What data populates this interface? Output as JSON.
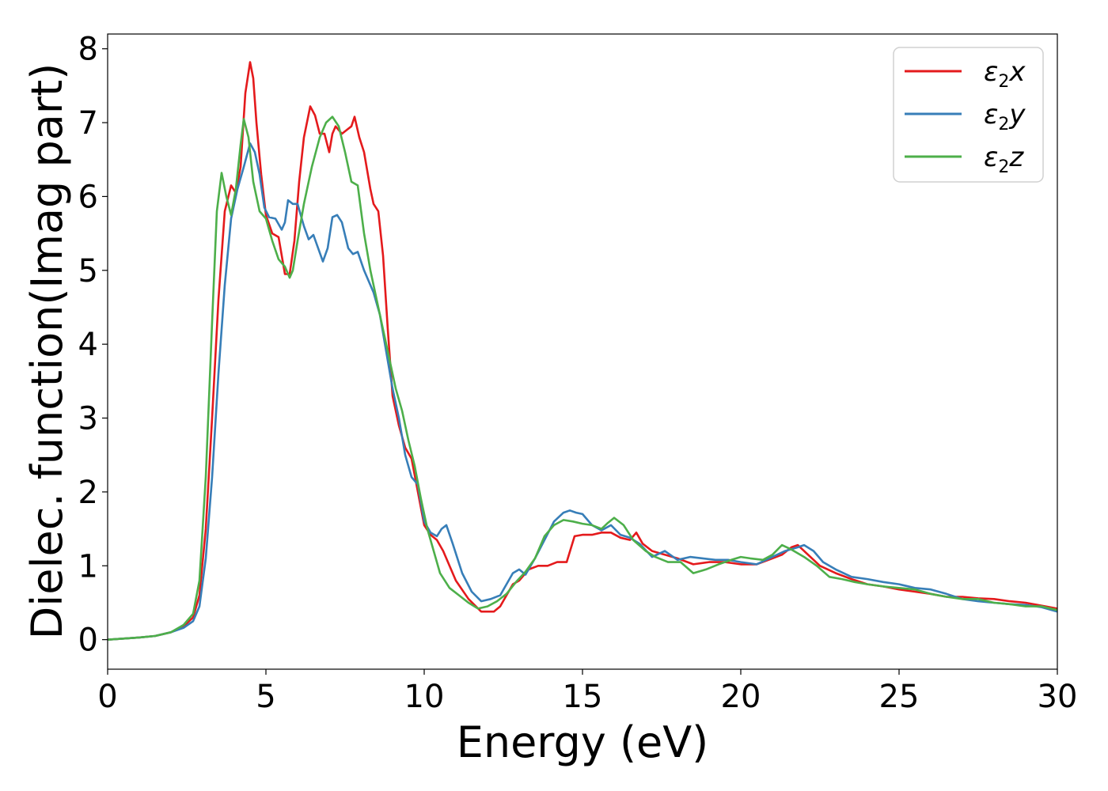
{
  "chart_data": {
    "type": "line",
    "xlabel": "Energy (eV)",
    "ylabel": "Dielec. function(Imag part)",
    "xlim": [
      0,
      30
    ],
    "ylim": [
      -0.4,
      8.2
    ],
    "xticks": [
      "0",
      "5",
      "10",
      "15",
      "20",
      "25",
      "30"
    ],
    "yticks": [
      "0",
      "1",
      "2",
      "3",
      "4",
      "5",
      "6",
      "7",
      "8"
    ],
    "grid": false,
    "legend_position": "top-right",
    "series": [
      {
        "name": "ε2x",
        "legend": {
          "symbol": "ε",
          "sub": "2",
          "axis": "x"
        },
        "color": "#e41a1c",
        "points": [
          [
            0,
            0
          ],
          [
            1,
            0.03
          ],
          [
            1.5,
            0.05
          ],
          [
            2,
            0.1
          ],
          [
            2.4,
            0.18
          ],
          [
            2.7,
            0.3
          ],
          [
            2.9,
            0.6
          ],
          [
            3.1,
            1.5
          ],
          [
            3.3,
            3.0
          ],
          [
            3.5,
            4.6
          ],
          [
            3.7,
            5.8
          ],
          [
            3.9,
            6.15
          ],
          [
            4.05,
            6.05
          ],
          [
            4.2,
            6.4
          ],
          [
            4.35,
            7.4
          ],
          [
            4.5,
            7.82
          ],
          [
            4.6,
            7.6
          ],
          [
            4.7,
            7.0
          ],
          [
            4.85,
            6.3
          ],
          [
            5.0,
            5.75
          ],
          [
            5.2,
            5.5
          ],
          [
            5.4,
            5.45
          ],
          [
            5.6,
            4.95
          ],
          [
            5.75,
            4.95
          ],
          [
            5.9,
            5.4
          ],
          [
            6.05,
            6.2
          ],
          [
            6.2,
            6.8
          ],
          [
            6.4,
            7.22
          ],
          [
            6.55,
            7.1
          ],
          [
            6.7,
            6.85
          ],
          [
            6.85,
            6.85
          ],
          [
            7.0,
            6.6
          ],
          [
            7.1,
            6.85
          ],
          [
            7.2,
            6.95
          ],
          [
            7.4,
            6.85
          ],
          [
            7.55,
            6.9
          ],
          [
            7.7,
            6.95
          ],
          [
            7.8,
            7.08
          ],
          [
            7.95,
            6.8
          ],
          [
            8.1,
            6.6
          ],
          [
            8.3,
            6.1
          ],
          [
            8.4,
            5.9
          ],
          [
            8.55,
            5.8
          ],
          [
            8.7,
            5.2
          ],
          [
            8.85,
            4.2
          ],
          [
            9.0,
            3.3
          ],
          [
            9.2,
            2.9
          ],
          [
            9.4,
            2.6
          ],
          [
            9.6,
            2.45
          ],
          [
            9.8,
            2.0
          ],
          [
            10.0,
            1.55
          ],
          [
            10.2,
            1.42
          ],
          [
            10.4,
            1.35
          ],
          [
            10.6,
            1.2
          ],
          [
            11.0,
            0.8
          ],
          [
            11.4,
            0.55
          ],
          [
            11.8,
            0.38
          ],
          [
            12.2,
            0.38
          ],
          [
            12.4,
            0.45
          ],
          [
            12.8,
            0.75
          ],
          [
            13.0,
            0.8
          ],
          [
            13.3,
            0.95
          ],
          [
            13.6,
            1.0
          ],
          [
            13.9,
            1.0
          ],
          [
            14.2,
            1.05
          ],
          [
            14.5,
            1.05
          ],
          [
            14.75,
            1.4
          ],
          [
            15.0,
            1.42
          ],
          [
            15.3,
            1.42
          ],
          [
            15.6,
            1.45
          ],
          [
            15.9,
            1.45
          ],
          [
            16.2,
            1.38
          ],
          [
            16.5,
            1.35
          ],
          [
            16.7,
            1.45
          ],
          [
            16.9,
            1.3
          ],
          [
            17.2,
            1.2
          ],
          [
            17.6,
            1.15
          ],
          [
            18.0,
            1.1
          ],
          [
            18.5,
            1.02
          ],
          [
            19.0,
            1.05
          ],
          [
            19.5,
            1.05
          ],
          [
            20.0,
            1.02
          ],
          [
            20.5,
            1.02
          ],
          [
            21.0,
            1.1
          ],
          [
            21.3,
            1.15
          ],
          [
            21.6,
            1.25
          ],
          [
            21.8,
            1.28
          ],
          [
            22.0,
            1.2
          ],
          [
            22.5,
            1.0
          ],
          [
            23.0,
            0.9
          ],
          [
            23.5,
            0.82
          ],
          [
            24.0,
            0.75
          ],
          [
            24.5,
            0.72
          ],
          [
            25.0,
            0.68
          ],
          [
            25.5,
            0.65
          ],
          [
            26.0,
            0.62
          ],
          [
            26.5,
            0.58
          ],
          [
            27.0,
            0.58
          ],
          [
            27.5,
            0.56
          ],
          [
            28.0,
            0.55
          ],
          [
            28.5,
            0.52
          ],
          [
            29.0,
            0.5
          ],
          [
            29.5,
            0.46
          ],
          [
            30.0,
            0.42
          ]
        ]
      },
      {
        "name": "ε2y",
        "legend": {
          "symbol": "ε",
          "sub": "2",
          "axis": "y"
        },
        "color": "#377eb8",
        "points": [
          [
            0,
            0
          ],
          [
            1,
            0.03
          ],
          [
            1.5,
            0.05
          ],
          [
            2,
            0.1
          ],
          [
            2.4,
            0.16
          ],
          [
            2.7,
            0.25
          ],
          [
            2.9,
            0.45
          ],
          [
            3.1,
            1.1
          ],
          [
            3.3,
            2.2
          ],
          [
            3.5,
            3.6
          ],
          [
            3.7,
            4.8
          ],
          [
            3.9,
            5.7
          ],
          [
            4.1,
            6.1
          ],
          [
            4.3,
            6.4
          ],
          [
            4.5,
            6.72
          ],
          [
            4.65,
            6.6
          ],
          [
            4.8,
            6.3
          ],
          [
            4.95,
            5.85
          ],
          [
            5.1,
            5.72
          ],
          [
            5.3,
            5.7
          ],
          [
            5.5,
            5.55
          ],
          [
            5.6,
            5.65
          ],
          [
            5.7,
            5.95
          ],
          [
            5.85,
            5.9
          ],
          [
            6.0,
            5.9
          ],
          [
            6.2,
            5.6
          ],
          [
            6.35,
            5.42
          ],
          [
            6.5,
            5.48
          ],
          [
            6.65,
            5.3
          ],
          [
            6.8,
            5.12
          ],
          [
            6.95,
            5.3
          ],
          [
            7.1,
            5.72
          ],
          [
            7.25,
            5.75
          ],
          [
            7.4,
            5.65
          ],
          [
            7.6,
            5.3
          ],
          [
            7.75,
            5.22
          ],
          [
            7.9,
            5.25
          ],
          [
            8.1,
            5.0
          ],
          [
            8.25,
            4.85
          ],
          [
            8.4,
            4.7
          ],
          [
            8.6,
            4.4
          ],
          [
            8.8,
            3.9
          ],
          [
            9.0,
            3.4
          ],
          [
            9.2,
            3.0
          ],
          [
            9.4,
            2.5
          ],
          [
            9.6,
            2.2
          ],
          [
            9.8,
            2.1
          ],
          [
            10.0,
            1.6
          ],
          [
            10.2,
            1.45
          ],
          [
            10.4,
            1.4
          ],
          [
            10.55,
            1.5
          ],
          [
            10.7,
            1.55
          ],
          [
            10.9,
            1.3
          ],
          [
            11.2,
            0.9
          ],
          [
            11.5,
            0.65
          ],
          [
            11.8,
            0.52
          ],
          [
            12.1,
            0.55
          ],
          [
            12.4,
            0.6
          ],
          [
            12.6,
            0.75
          ],
          [
            12.8,
            0.9
          ],
          [
            13.0,
            0.95
          ],
          [
            13.2,
            0.88
          ],
          [
            13.5,
            1.1
          ],
          [
            13.8,
            1.35
          ],
          [
            14.1,
            1.6
          ],
          [
            14.4,
            1.72
          ],
          [
            14.6,
            1.75
          ],
          [
            14.8,
            1.72
          ],
          [
            15.0,
            1.7
          ],
          [
            15.3,
            1.55
          ],
          [
            15.6,
            1.48
          ],
          [
            15.9,
            1.55
          ],
          [
            16.2,
            1.42
          ],
          [
            16.5,
            1.38
          ],
          [
            16.8,
            1.3
          ],
          [
            17.2,
            1.12
          ],
          [
            17.6,
            1.2
          ],
          [
            18.0,
            1.08
          ],
          [
            18.4,
            1.12
          ],
          [
            18.8,
            1.1
          ],
          [
            19.2,
            1.08
          ],
          [
            19.6,
            1.08
          ],
          [
            20.0,
            1.05
          ],
          [
            20.5,
            1.02
          ],
          [
            21.0,
            1.12
          ],
          [
            21.4,
            1.2
          ],
          [
            21.8,
            1.25
          ],
          [
            22.0,
            1.28
          ],
          [
            22.3,
            1.2
          ],
          [
            22.6,
            1.05
          ],
          [
            23.0,
            0.95
          ],
          [
            23.5,
            0.85
          ],
          [
            24.0,
            0.82
          ],
          [
            24.5,
            0.78
          ],
          [
            25.0,
            0.75
          ],
          [
            25.5,
            0.7
          ],
          [
            26.0,
            0.68
          ],
          [
            26.5,
            0.62
          ],
          [
            27.0,
            0.55
          ],
          [
            27.5,
            0.52
          ],
          [
            28.0,
            0.5
          ],
          [
            28.5,
            0.48
          ],
          [
            29.0,
            0.47
          ],
          [
            29.5,
            0.44
          ],
          [
            30.0,
            0.38
          ]
        ]
      },
      {
        "name": "ε2z",
        "legend": {
          "symbol": "ε",
          "sub": "2",
          "axis": "z"
        },
        "color": "#4daf4a",
        "points": [
          [
            0,
            0
          ],
          [
            1,
            0.03
          ],
          [
            1.5,
            0.05
          ],
          [
            2,
            0.1
          ],
          [
            2.4,
            0.2
          ],
          [
            2.7,
            0.35
          ],
          [
            2.9,
            0.8
          ],
          [
            3.1,
            2.2
          ],
          [
            3.3,
            4.3
          ],
          [
            3.45,
            5.8
          ],
          [
            3.6,
            6.32
          ],
          [
            3.75,
            6.0
          ],
          [
            3.9,
            5.75
          ],
          [
            4.05,
            6.1
          ],
          [
            4.2,
            6.7
          ],
          [
            4.3,
            7.05
          ],
          [
            4.45,
            6.8
          ],
          [
            4.6,
            6.2
          ],
          [
            4.8,
            5.8
          ],
          [
            5.0,
            5.7
          ],
          [
            5.2,
            5.4
          ],
          [
            5.4,
            5.15
          ],
          [
            5.6,
            5.05
          ],
          [
            5.75,
            4.9
          ],
          [
            5.85,
            5.0
          ],
          [
            6.0,
            5.4
          ],
          [
            6.2,
            5.9
          ],
          [
            6.45,
            6.4
          ],
          [
            6.7,
            6.8
          ],
          [
            6.9,
            7.0
          ],
          [
            7.1,
            7.08
          ],
          [
            7.3,
            6.95
          ],
          [
            7.5,
            6.6
          ],
          [
            7.7,
            6.2
          ],
          [
            7.9,
            6.15
          ],
          [
            8.1,
            5.5
          ],
          [
            8.3,
            5.0
          ],
          [
            8.5,
            4.6
          ],
          [
            8.7,
            4.2
          ],
          [
            8.9,
            3.8
          ],
          [
            9.1,
            3.4
          ],
          [
            9.3,
            3.1
          ],
          [
            9.5,
            2.7
          ],
          [
            9.7,
            2.35
          ],
          [
            9.9,
            1.9
          ],
          [
            10.1,
            1.5
          ],
          [
            10.3,
            1.2
          ],
          [
            10.5,
            0.9
          ],
          [
            10.8,
            0.7
          ],
          [
            11.1,
            0.6
          ],
          [
            11.4,
            0.5
          ],
          [
            11.7,
            0.42
          ],
          [
            12.0,
            0.45
          ],
          [
            12.3,
            0.52
          ],
          [
            12.6,
            0.62
          ],
          [
            12.9,
            0.78
          ],
          [
            13.2,
            0.92
          ],
          [
            13.5,
            1.1
          ],
          [
            13.8,
            1.4
          ],
          [
            14.1,
            1.55
          ],
          [
            14.4,
            1.62
          ],
          [
            14.7,
            1.6
          ],
          [
            15.0,
            1.57
          ],
          [
            15.3,
            1.55
          ],
          [
            15.6,
            1.5
          ],
          [
            15.8,
            1.58
          ],
          [
            16.0,
            1.65
          ],
          [
            16.3,
            1.55
          ],
          [
            16.6,
            1.35
          ],
          [
            17.0,
            1.2
          ],
          [
            17.3,
            1.12
          ],
          [
            17.7,
            1.05
          ],
          [
            18.1,
            1.05
          ],
          [
            18.5,
            0.9
          ],
          [
            18.9,
            0.95
          ],
          [
            19.3,
            1.02
          ],
          [
            19.7,
            1.08
          ],
          [
            20.0,
            1.12
          ],
          [
            20.3,
            1.1
          ],
          [
            20.7,
            1.08
          ],
          [
            21.0,
            1.15
          ],
          [
            21.3,
            1.28
          ],
          [
            21.6,
            1.22
          ],
          [
            22.0,
            1.12
          ],
          [
            22.4,
            1.0
          ],
          [
            22.8,
            0.85
          ],
          [
            23.2,
            0.82
          ],
          [
            23.6,
            0.78
          ],
          [
            24.0,
            0.75
          ],
          [
            24.5,
            0.72
          ],
          [
            25.0,
            0.7
          ],
          [
            25.5,
            0.68
          ],
          [
            26.0,
            0.62
          ],
          [
            26.5,
            0.58
          ],
          [
            27.0,
            0.55
          ],
          [
            27.5,
            0.55
          ],
          [
            28.0,
            0.5
          ],
          [
            28.5,
            0.48
          ],
          [
            29.0,
            0.45
          ],
          [
            29.5,
            0.45
          ],
          [
            30.0,
            0.4
          ]
        ]
      }
    ]
  }
}
